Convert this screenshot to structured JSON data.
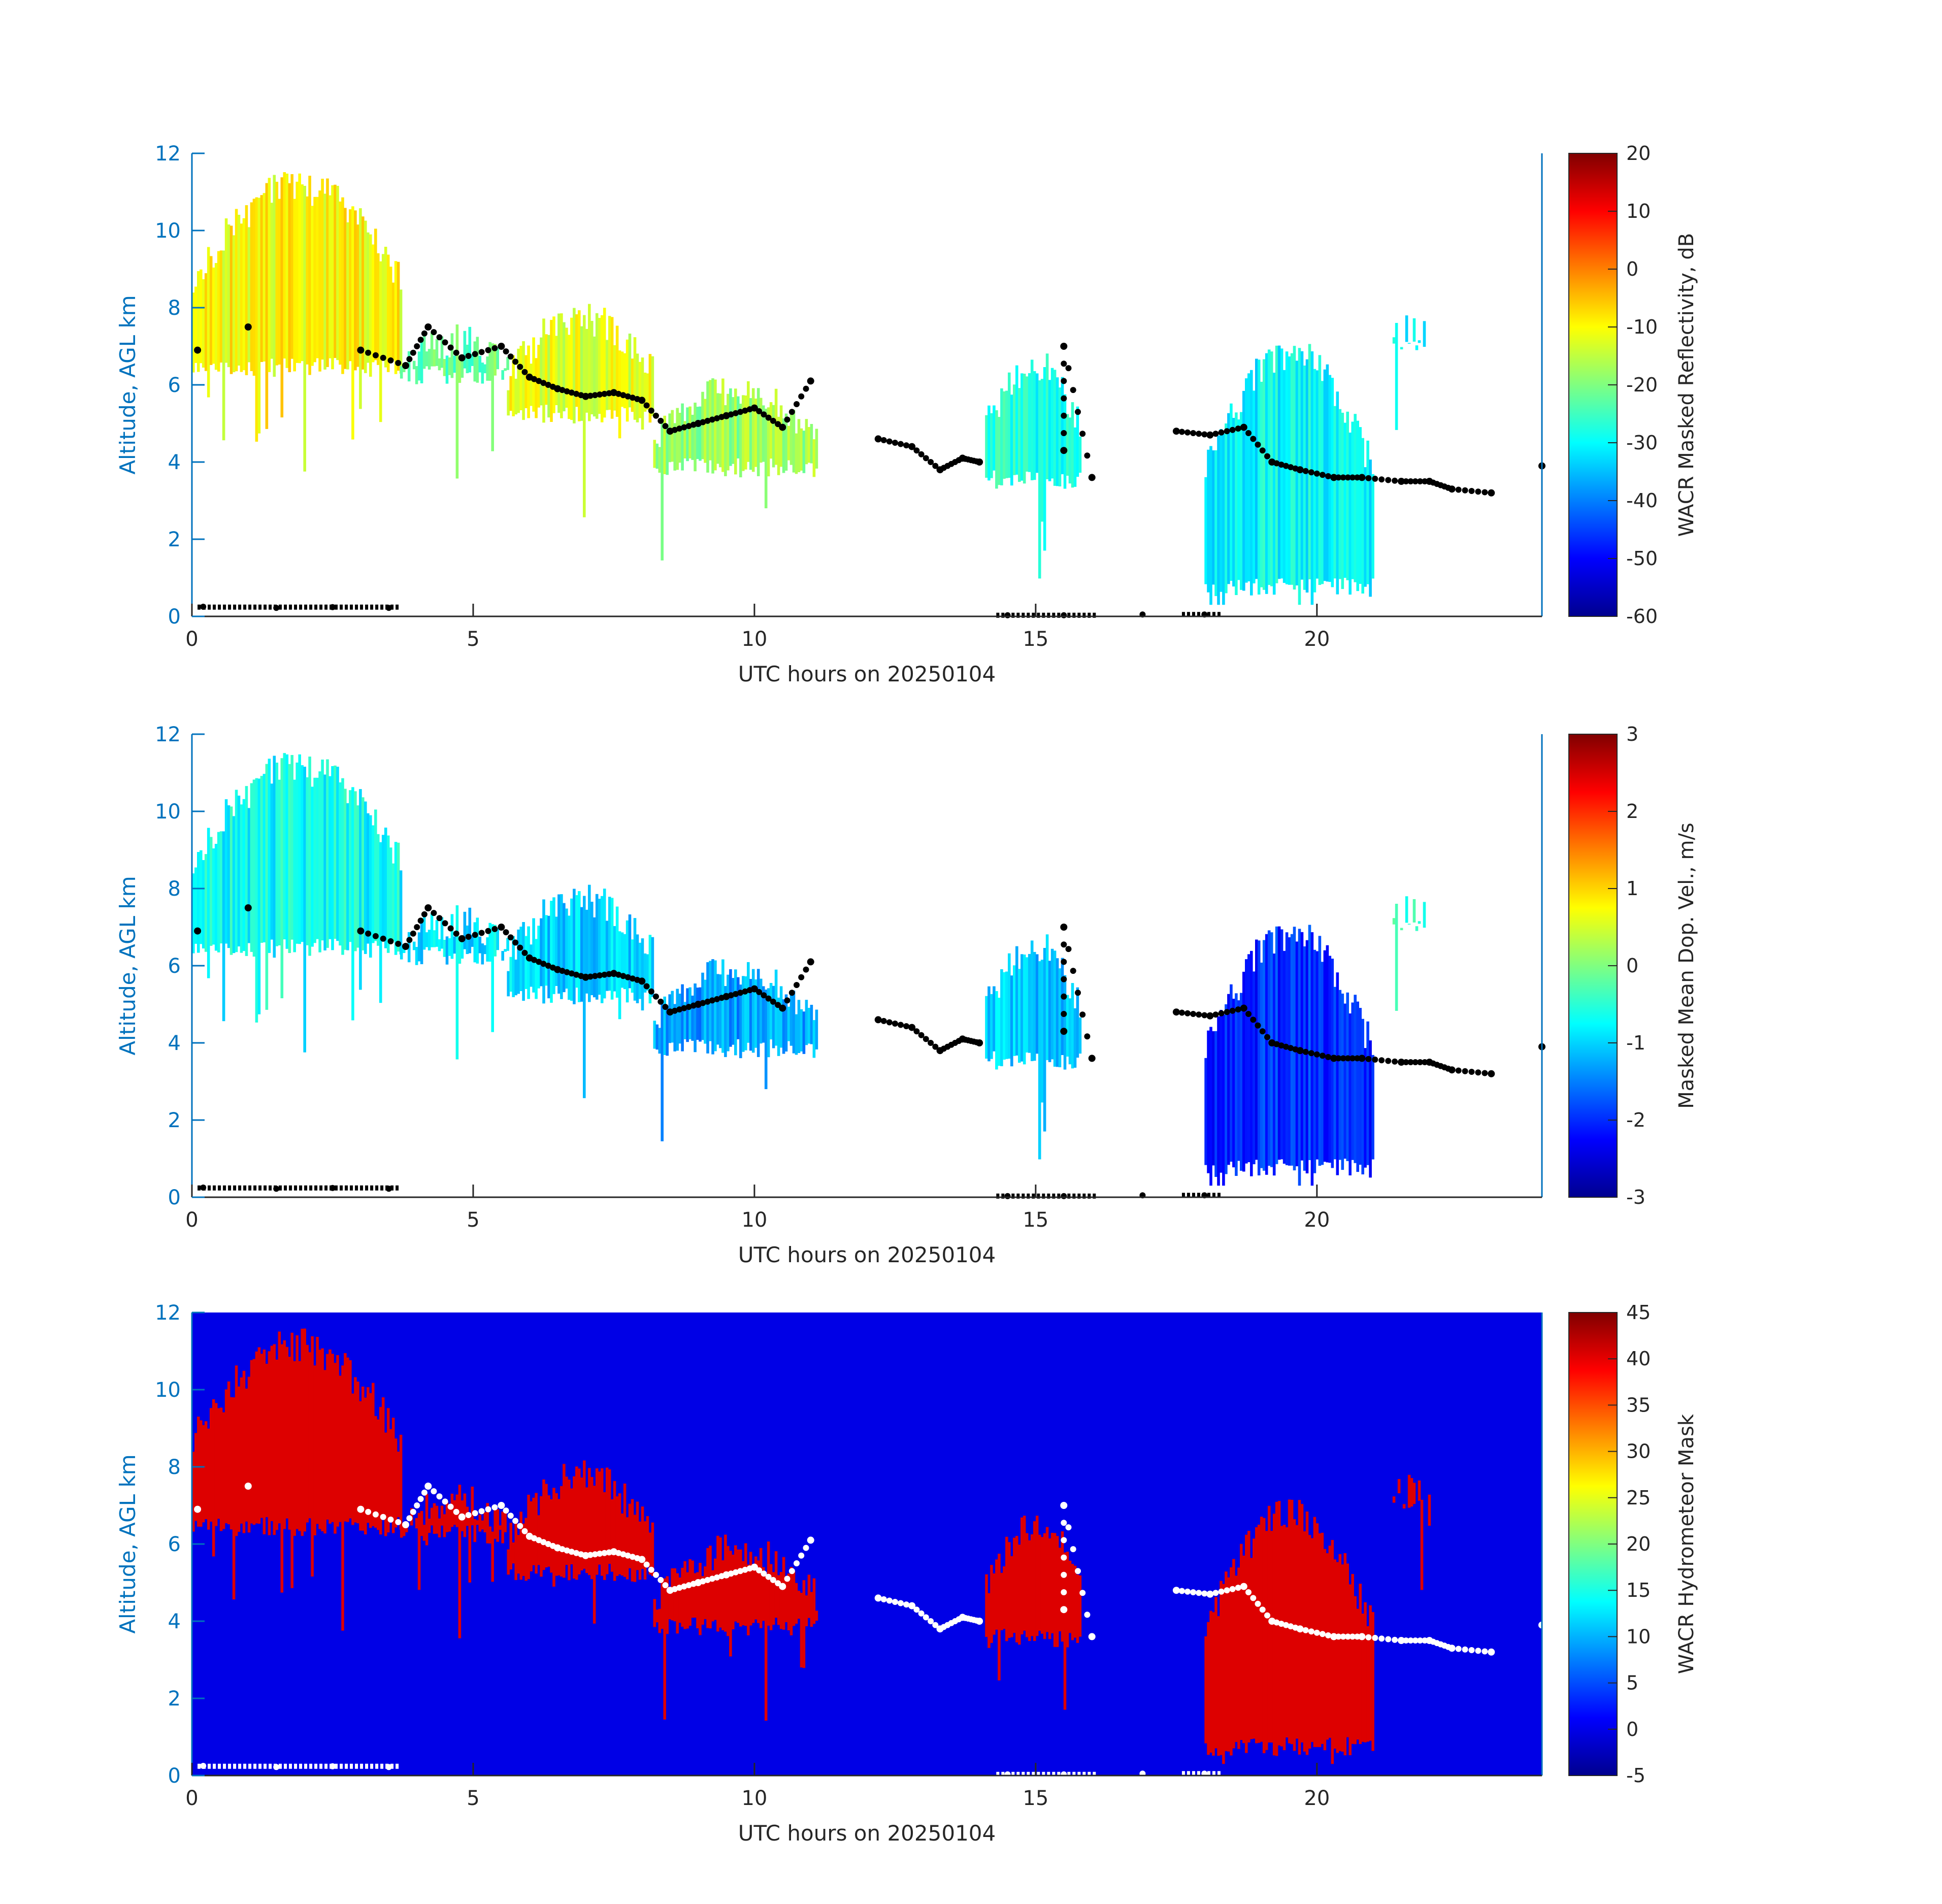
{
  "figure": {
    "x_axis_label": "UTC hours on 20250104",
    "y_axis_label": "Altitude, AGL km",
    "x_ticks": [
      "0",
      "5",
      "10",
      "15",
      "20"
    ],
    "y_ticks": [
      "0",
      "2",
      "4",
      "6",
      "8",
      "10",
      "12"
    ]
  },
  "chart_data": [
    {
      "type": "heatmap",
      "panel": 1,
      "title": "",
      "xlabel": "UTC hours on 20250104",
      "ylabel": "Altitude, AGL km",
      "xlim": [
        0,
        24
      ],
      "ylim": [
        0,
        12
      ],
      "colorbar": {
        "label": "WACR Masked Reflectivity, dB",
        "range": [
          -60,
          20
        ],
        "ticks": [
          "20",
          "10",
          "0",
          "-10",
          "-20",
          "-30",
          "-40",
          "-50",
          "-60"
        ],
        "colormap": "jet"
      },
      "background": "#ffffff",
      "point_color": "#000000",
      "cloud_regions": [
        {
          "x": [
            0,
            3.7
          ],
          "bottom": 6.2,
          "top": 11.6,
          "value": -10
        },
        {
          "x": [
            3.7,
            5.6
          ],
          "bottom": 6.0,
          "top": 7.6,
          "value": -22
        },
        {
          "x": [
            5.6,
            8.2
          ],
          "bottom": 5.0,
          "top": 8.2,
          "value": -12
        },
        {
          "x": [
            8.2,
            11.1
          ],
          "bottom": 3.6,
          "top": 6.3,
          "value": -18
        },
        {
          "x": [
            14.1,
            15.8
          ],
          "bottom": 3.3,
          "top": 7.0,
          "value": -28
        },
        {
          "x": [
            18.0,
            21.0
          ],
          "bottom": 0.5,
          "top": 7.3,
          "value": -30
        },
        {
          "x": [
            21.3,
            22.0
          ],
          "bottom": 6.9,
          "top": 7.9,
          "value": -30
        }
      ],
      "cloud_base_points": [
        {
          "x": 0.1,
          "y": 6.9
        },
        {
          "x": 1.0,
          "y": 7.5
        },
        {
          "x": 3.0,
          "y": 6.9
        },
        {
          "x": 3.8,
          "y": 6.5
        },
        {
          "x": 4.2,
          "y": 7.5
        },
        {
          "x": 4.8,
          "y": 6.7
        },
        {
          "x": 5.5,
          "y": 7.0
        },
        {
          "x": 6.0,
          "y": 6.2
        },
        {
          "x": 6.5,
          "y": 5.9
        },
        {
          "x": 7.0,
          "y": 5.7
        },
        {
          "x": 7.5,
          "y": 5.8
        },
        {
          "x": 8.0,
          "y": 5.6
        },
        {
          "x": 8.5,
          "y": 4.8
        },
        {
          "x": 9.0,
          "y": 5.0
        },
        {
          "x": 9.5,
          "y": 5.2
        },
        {
          "x": 10.0,
          "y": 5.4
        },
        {
          "x": 10.5,
          "y": 4.9
        },
        {
          "x": 11.0,
          "y": 6.1
        },
        {
          "x": 12.2,
          "y": 4.6
        },
        {
          "x": 12.8,
          "y": 4.4
        },
        {
          "x": 13.3,
          "y": 3.8
        },
        {
          "x": 13.7,
          "y": 4.1
        },
        {
          "x": 14.0,
          "y": 4.0
        },
        {
          "x": 15.5,
          "y": 4.3
        },
        {
          "x": 15.5,
          "y": 7.0
        },
        {
          "x": 16.0,
          "y": 3.6
        },
        {
          "x": 17.5,
          "y": 4.8
        },
        {
          "x": 18.1,
          "y": 4.7
        },
        {
          "x": 18.7,
          "y": 4.9
        },
        {
          "x": 19.2,
          "y": 4.0
        },
        {
          "x": 19.7,
          "y": 3.8
        },
        {
          "x": 20.3,
          "y": 3.6
        },
        {
          "x": 20.8,
          "y": 3.6
        },
        {
          "x": 21.5,
          "y": 3.5
        },
        {
          "x": 22.0,
          "y": 3.5
        },
        {
          "x": 22.4,
          "y": 3.3
        },
        {
          "x": 23.1,
          "y": 3.2
        },
        {
          "x": 24.0,
          "y": 3.9
        }
      ],
      "surface_points": [
        {
          "x": 0.2,
          "y": 0.25
        },
        {
          "x": 1.5,
          "y": 0.22
        },
        {
          "x": 2.5,
          "y": 0.24
        },
        {
          "x": 3.5,
          "y": 0.22
        },
        {
          "x": 14.5,
          "y": 0.03
        },
        {
          "x": 15.5,
          "y": 0.03
        },
        {
          "x": 16.9,
          "y": 0.05
        },
        {
          "x": 18.0,
          "y": 0.05
        }
      ]
    },
    {
      "type": "heatmap",
      "panel": 2,
      "title": "",
      "xlabel": "UTC hours on 20250104",
      "ylabel": "Altitude, AGL km",
      "xlim": [
        0,
        24
      ],
      "ylim": [
        0,
        12
      ],
      "colorbar": {
        "label": "Masked Mean Dop. Vel., m/s",
        "range": [
          -3,
          3
        ],
        "ticks": [
          "3",
          "2",
          "1",
          "0",
          "-1",
          "-2",
          "-3"
        ],
        "colormap": "jet"
      },
      "background": "#ffffff",
      "point_color": "#000000",
      "cloud_regions": [
        {
          "x": [
            0,
            3.7
          ],
          "bottom": 6.2,
          "top": 11.6,
          "value": -0.7
        },
        {
          "x": [
            3.7,
            5.6
          ],
          "bottom": 6.0,
          "top": 7.6,
          "value": -0.9
        },
        {
          "x": [
            5.6,
            8.2
          ],
          "bottom": 5.0,
          "top": 8.2,
          "value": -1.0
        },
        {
          "x": [
            8.2,
            11.1
          ],
          "bottom": 3.6,
          "top": 6.3,
          "value": -1.3
        },
        {
          "x": [
            14.1,
            15.8
          ],
          "bottom": 3.3,
          "top": 7.0,
          "value": -1.1
        },
        {
          "x": [
            18.0,
            21.0
          ],
          "bottom": 0.5,
          "top": 7.3,
          "value": -2.0
        },
        {
          "x": [
            21.3,
            22.0
          ],
          "bottom": 6.9,
          "top": 7.9,
          "value": -0.4
        }
      ],
      "cloud_base_points": "same as panel 1",
      "surface_points": "same as panel 1"
    },
    {
      "type": "heatmap",
      "panel": 3,
      "title": "",
      "xlabel": "UTC hours on 20250104",
      "ylabel": "Altitude, AGL km",
      "xlim": [
        0,
        24
      ],
      "ylim": [
        0,
        12
      ],
      "colorbar": {
        "label": "WACR Hydrometeor Mask",
        "range": [
          -5,
          45
        ],
        "ticks": [
          "45",
          "40",
          "35",
          "30",
          "25",
          "20",
          "15",
          "10",
          "5",
          "0",
          "-5"
        ],
        "colormap": "jet"
      },
      "background": "#0000e6",
      "fill_color": "#dd0000",
      "point_color": "#ffffff",
      "cloud_regions": [
        {
          "x": [
            0,
            3.7
          ],
          "bottom": 6.2,
          "top": 11.6,
          "value": 40
        },
        {
          "x": [
            3.7,
            5.6
          ],
          "bottom": 6.0,
          "top": 7.6,
          "value": 40
        },
        {
          "x": [
            5.6,
            8.2
          ],
          "bottom": 5.0,
          "top": 8.2,
          "value": 40
        },
        {
          "x": [
            8.2,
            11.1
          ],
          "bottom": 3.6,
          "top": 6.3,
          "value": 40
        },
        {
          "x": [
            14.1,
            15.8
          ],
          "bottom": 3.3,
          "top": 7.0,
          "value": 40
        },
        {
          "x": [
            18.0,
            21.0
          ],
          "bottom": 0.5,
          "top": 7.3,
          "value": 40
        },
        {
          "x": [
            21.3,
            22.0
          ],
          "bottom": 6.9,
          "top": 7.9,
          "value": 40
        }
      ],
      "cloud_base_points": "same as panel 1",
      "surface_points": "same as panel 1"
    }
  ]
}
